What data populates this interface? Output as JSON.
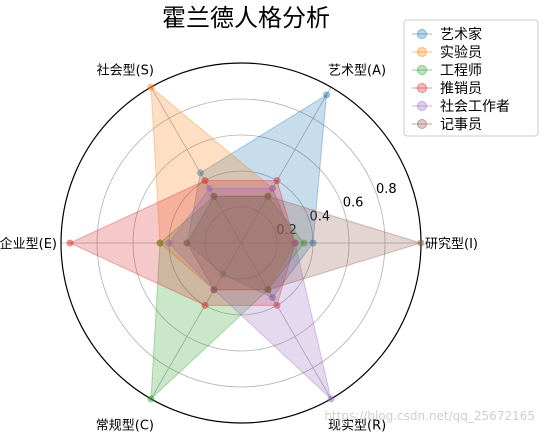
{
  "chart_data": {
    "type": "radar",
    "title": "霍兰德人格分析",
    "categories": [
      "研究型(I)",
      "艺术型(A)",
      "社会型(S)",
      "企业型(E)",
      "常规型(C)",
      "现实型(R)"
    ],
    "radial_ticks": [
      "0.2",
      "0.4",
      "0.6",
      "0.8"
    ],
    "rlim": [
      0,
      1
    ],
    "grid": true,
    "legend_position": "top-right",
    "series": [
      {
        "name": "艺术家",
        "color": "#1f77b4",
        "values": [
          0.4,
          0.95,
          0.45,
          0.3,
          0.2,
          0.35
        ]
      },
      {
        "name": "实验员",
        "color": "#ff7f0e",
        "values": [
          0.3,
          0.35,
          1.0,
          0.45,
          0.3,
          0.3
        ]
      },
      {
        "name": "工程师",
        "color": "#2ca02c",
        "values": [
          0.35,
          0.3,
          0.3,
          0.45,
          1.0,
          0.3
        ]
      },
      {
        "name": "推销员",
        "color": "#d62728",
        "values": [
          0.3,
          0.4,
          0.4,
          0.95,
          0.4,
          0.4
        ]
      },
      {
        "name": "社会工作者",
        "color": "#9467bd",
        "values": [
          0.3,
          0.35,
          0.35,
          0.4,
          0.3,
          1.0
        ]
      },
      {
        "name": "记事员",
        "color": "#8c564b",
        "values": [
          1.0,
          0.3,
          0.3,
          0.3,
          0.3,
          0.3
        ]
      }
    ]
  },
  "watermark": "https://blog.csdn.net/qq_25672165"
}
